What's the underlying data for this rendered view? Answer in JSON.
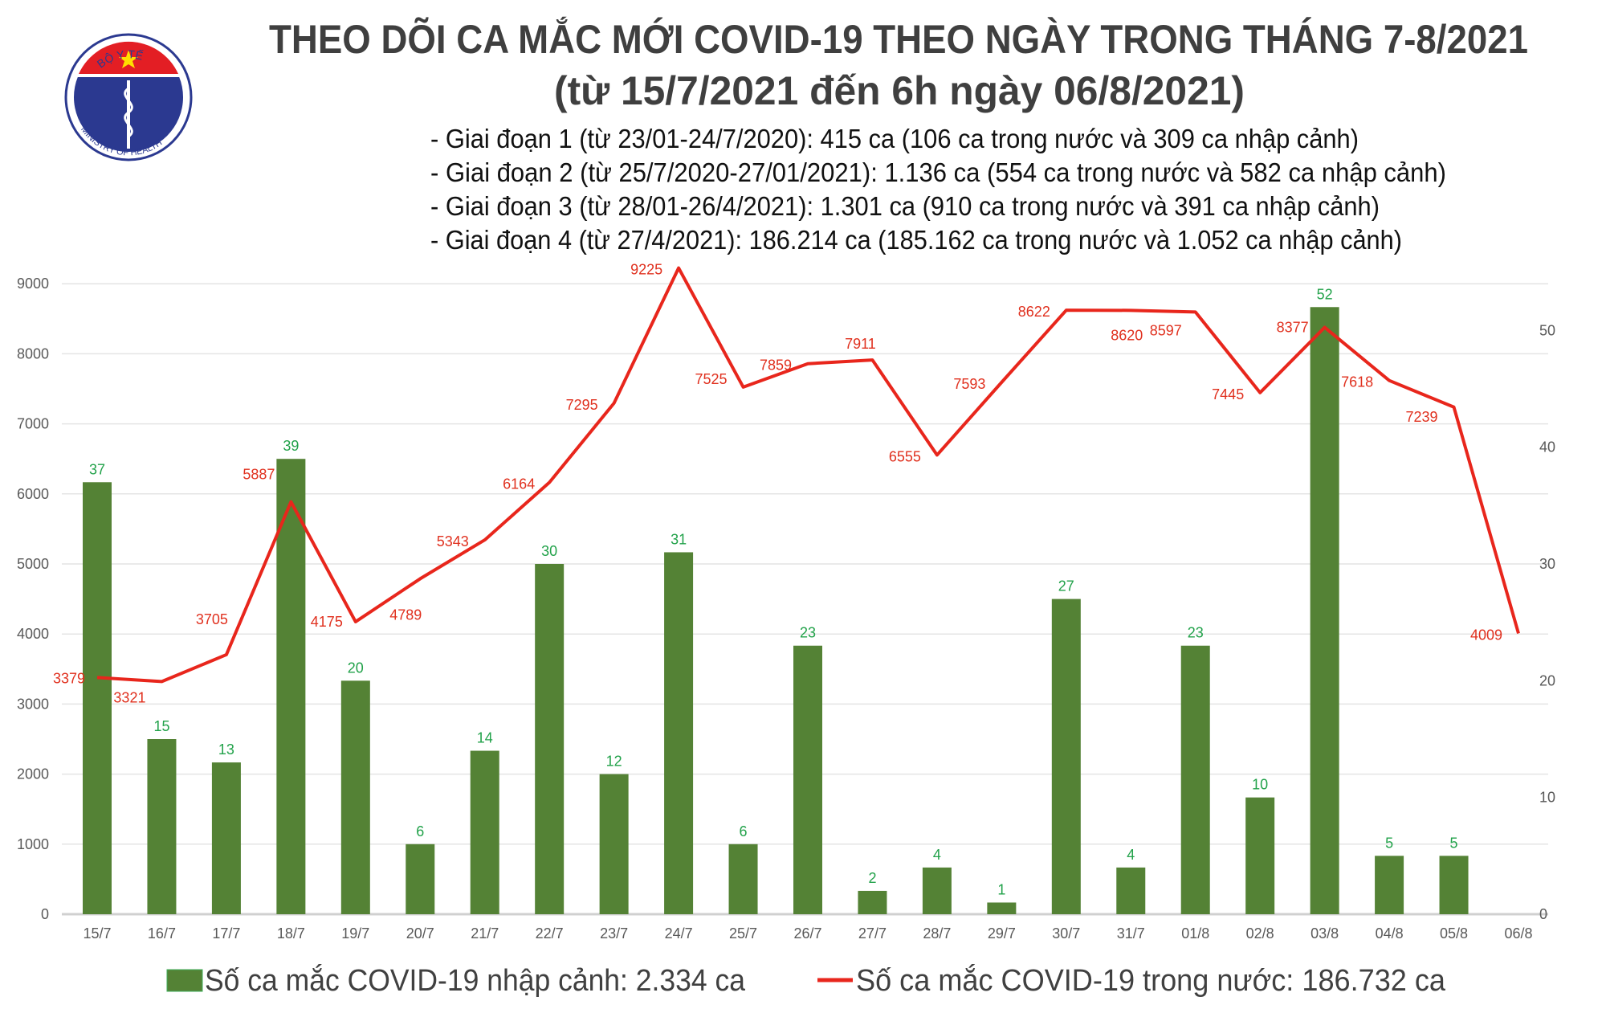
{
  "header": {
    "title_line1": "THEO DÕI CA MẮC MỚI COVID-19 THEO NGÀY TRONG THÁNG 7-8/2021",
    "title_line2": "(từ 15/7/2021 đến 6h ngày 06/8/2021)",
    "stages": [
      "- Giai đoạn 1 (từ 23/01-24/7/2020): 415 ca (106 ca trong nước và 309 ca nhập cảnh)",
      "- Giai đoạn 2 (từ 25/7/2020-27/01/2021): 1.136 ca (554 ca trong nước và 582 ca nhập cảnh)",
      "- Giai đoạn 3 (từ 28/01-26/4/2021): 1.301 ca (910 ca trong nước và 391 ca nhập cảnh)",
      "- Giai đoạn 4 (từ 27/4/2021): 186.214 ca (185.162 ca trong nước và 1.052 ca nhập cảnh)"
    ]
  },
  "logo": {
    "top_text": "BỘ Y TẾ",
    "bottom_text": "MINISTRY OF HEALTH"
  },
  "chart_data": {
    "type": "bar+line",
    "categories": [
      "15/7",
      "16/7",
      "17/7",
      "18/7",
      "19/7",
      "20/7",
      "21/7",
      "22/7",
      "23/7",
      "24/7",
      "25/7",
      "26/7",
      "27/7",
      "28/7",
      "29/7",
      "30/7",
      "31/7",
      "01/8",
      "02/8",
      "03/8",
      "04/8",
      "05/8",
      "06/8"
    ],
    "series": [
      {
        "name": "Số ca mắc COVID-19 nhập cảnh: 2.334 ca",
        "type": "bar",
        "axis": "right",
        "color": "#548235",
        "values": [
          37,
          15,
          13,
          39,
          20,
          6,
          14,
          30,
          12,
          31,
          6,
          23,
          2,
          4,
          1,
          27,
          4,
          23,
          10,
          52,
          5,
          5,
          null
        ]
      },
      {
        "name": "Số ca mắc COVID-19 trong nước: 186.732 ca",
        "type": "line",
        "axis": "left",
        "color": "#e8261c",
        "values": [
          3379,
          3321,
          3705,
          5887,
          4175,
          4789,
          5343,
          6164,
          7295,
          9225,
          7525,
          7859,
          7911,
          6555,
          7593,
          8622,
          8620,
          8597,
          7445,
          8377,
          7618,
          7239,
          4009
        ]
      }
    ],
    "y_left": {
      "ylim": [
        0,
        10000
      ],
      "ticks": [
        "0",
        "1000",
        "2000",
        "3000",
        "4000",
        "5000",
        "6000",
        "7000",
        "8000",
        "9000"
      ]
    },
    "y_right": {
      "ylim": [
        0,
        60
      ],
      "ticks": [
        "0",
        "10",
        "20",
        "30",
        "40",
        "50"
      ]
    },
    "grid": true,
    "legend": "bottom",
    "colors": {
      "bar": "#548235",
      "bar_label": "#22a24a",
      "line": "#e8261c",
      "line_label": "#e0301e"
    }
  }
}
